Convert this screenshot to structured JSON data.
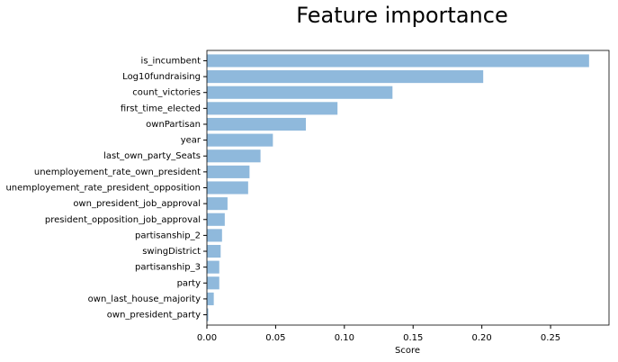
{
  "chart_data": {
    "type": "barh",
    "title": "Feature importance",
    "x_label": "Score",
    "categories": [
      "is_incumbent",
      "Log10fundraising",
      "count_victories",
      "first_time_elected",
      "ownPartisan",
      "year",
      "last_own_party_Seats",
      "unemployement_rate_own_president",
      "unemployement_rate_president_opposition",
      "own_president_job_approval",
      "president_opposition_job_approval",
      "partisanship_2",
      "swingDistrict",
      "partisanship_3",
      "party",
      "own_last_house_majority",
      "own_president_party"
    ],
    "values": [
      0.278,
      0.201,
      0.135,
      0.095,
      0.072,
      0.048,
      0.039,
      0.031,
      0.03,
      0.015,
      0.013,
      0.011,
      0.01,
      0.009,
      0.009,
      0.005,
      0.001
    ],
    "color": "#8fb9dc",
    "xlim": [
      0,
      0.2925
    ],
    "xticks": [
      {
        "value": 0,
        "label": "0.00"
      },
      0.05,
      {
        "value": 0.1,
        "label": "0.10"
      },
      0.15,
      {
        "value": 0.2,
        "label": "0.20"
      },
      0.25
    ]
  }
}
